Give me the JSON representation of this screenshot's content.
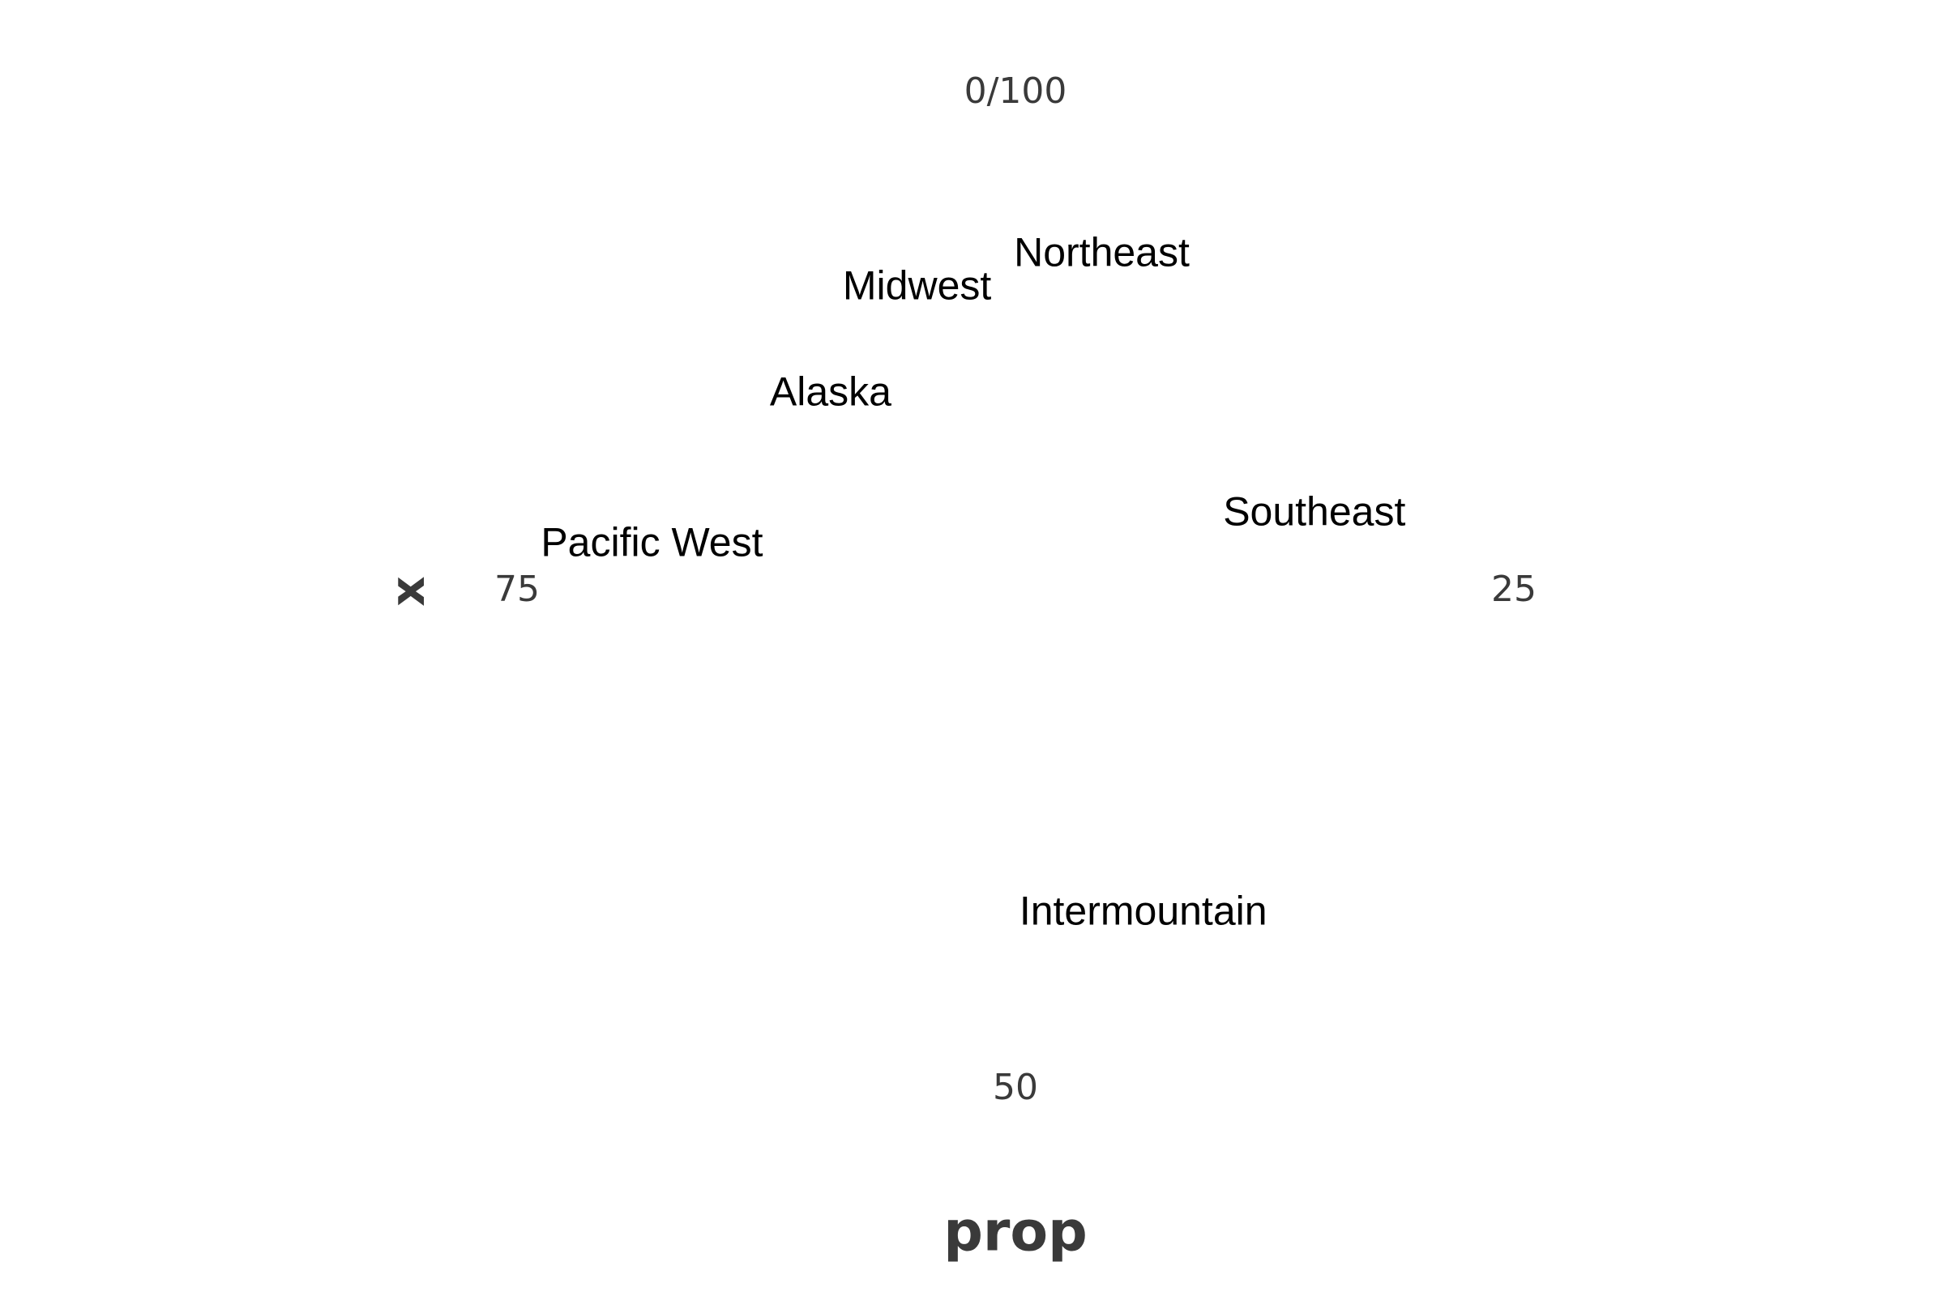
{
  "chart_data": {
    "type": "scatter",
    "coordinate_system": "polar",
    "theta_variable": "prop",
    "radial_variable": "x",
    "theta_range": [
      0,
      100
    ],
    "radial_range": [
      0,
      1
    ],
    "theta_ticks": [
      {
        "value": 0,
        "label": "0/100"
      },
      {
        "value": 25,
        "label": "25"
      },
      {
        "value": 50,
        "label": "50"
      },
      {
        "value": 75,
        "label": "75"
      }
    ],
    "xlabel": "prop",
    "ylabel": "x",
    "grid": false,
    "legend": "none",
    "marker": "text",
    "points": [
      {
        "label": "Northeast",
        "theta": 4,
        "r": 0.36
      },
      {
        "label": "Midwest",
        "theta": 95,
        "r": 0.33
      },
      {
        "label": "Alaska",
        "theta": 88,
        "r": 0.28
      },
      {
        "label": "Southeast",
        "theta": 21,
        "r": 0.32
      },
      {
        "label": "Pacific West",
        "theta": 77,
        "r": 0.38
      },
      {
        "label": "Intermountain",
        "theta": 44,
        "r": 0.36
      }
    ],
    "colors": {
      "tick_text": "#3a3a3a",
      "label_text": "#000000",
      "background": "#ffffff"
    }
  }
}
